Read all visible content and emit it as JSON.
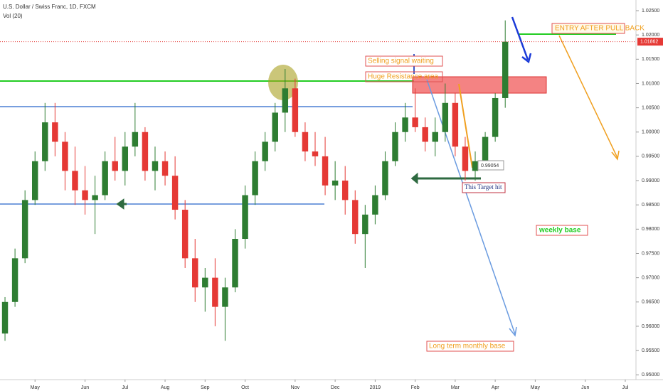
{
  "chart_data": {
    "type": "candlestick",
    "title": "U.S. Dollar / Swiss Franc, 1D, FXCM",
    "subtitle": "Vol (20)",
    "categories": [
      null,
      null,
      null,
      "May",
      null,
      null,
      null,
      null,
      "Jun",
      null,
      null,
      null,
      "Jul",
      null,
      null,
      null,
      "Aug",
      null,
      null,
      null,
      "Sep",
      null,
      null,
      null,
      "Oct",
      null,
      null,
      null,
      null,
      "Nov",
      null,
      null,
      null,
      "Dec",
      null,
      null,
      null,
      "2019",
      null,
      null,
      null,
      "Feb",
      null,
      null,
      null,
      "Mar",
      null,
      null,
      null,
      "Apr",
      null,
      null,
      null,
      "May",
      null,
      null,
      null,
      null,
      "Jun",
      null,
      null,
      null,
      "Jul"
    ],
    "open": [
      0.9585,
      0.965,
      0.974,
      0.986,
      0.994,
      1.002,
      0.998,
      0.992,
      0.988,
      0.986,
      0.987,
      0.994,
      0.992,
      0.997,
      1.0,
      0.992,
      0.994,
      0.991,
      0.984,
      0.974,
      0.968,
      0.97,
      0.964,
      0.968,
      0.978,
      0.987,
      0.994,
      0.998,
      1.004,
      1.009,
      1.0,
      0.996,
      0.995,
      0.989,
      0.99,
      0.986,
      0.979,
      0.983,
      0.987,
      0.994,
      1.0,
      1.003,
      1.001,
      0.998,
      1.0,
      1.006,
      0.997,
      0.992,
      0.994,
      0.999,
      1.007,
      null,
      null,
      null,
      null,
      null,
      null,
      null,
      null,
      null,
      null,
      null,
      null
    ],
    "high": [
      0.966,
      0.976,
      0.988,
      0.996,
      1.006,
      1.006,
      1.0,
      0.997,
      0.993,
      0.991,
      0.996,
      0.999,
      1.0,
      1.006,
      1.001,
      0.997,
      0.996,
      0.995,
      0.986,
      0.978,
      0.972,
      0.974,
      0.97,
      0.98,
      0.989,
      0.996,
      1.0,
      1.006,
      1.013,
      1.011,
      1.002,
      1.0,
      0.999,
      0.994,
      0.993,
      0.988,
      0.985,
      0.989,
      0.996,
      1.002,
      1.006,
      1.009,
      1.003,
      1.003,
      1.01,
      1.008,
      0.999,
      0.996,
      1.0,
      1.008,
      1.023,
      null,
      null,
      null,
      null,
      null,
      null,
      null,
      null,
      null,
      null,
      null,
      null
    ],
    "low": [
      0.957,
      0.964,
      0.973,
      0.985,
      0.992,
      0.995,
      0.988,
      0.985,
      0.983,
      0.979,
      0.986,
      0.99,
      0.989,
      0.995,
      0.99,
      0.988,
      0.989,
      0.982,
      0.972,
      0.965,
      0.963,
      0.96,
      0.957,
      0.967,
      0.976,
      0.985,
      0.992,
      0.996,
      1.0,
      0.999,
      0.994,
      0.993,
      0.987,
      0.986,
      0.983,
      0.977,
      0.972,
      0.981,
      0.986,
      0.993,
      0.998,
      1.0,
      0.996,
      0.995,
      0.998,
      0.995,
      0.99,
      0.99,
      0.993,
      0.998,
      1.005,
      null,
      null,
      null,
      null,
      null,
      null,
      null,
      null,
      null,
      null,
      null,
      null
    ],
    "close": [
      0.965,
      0.974,
      0.986,
      0.994,
      1.002,
      0.998,
      0.992,
      0.988,
      0.986,
      0.987,
      0.994,
      0.992,
      0.997,
      1.0,
      0.992,
      0.994,
      0.991,
      0.984,
      0.974,
      0.968,
      0.97,
      0.964,
      0.968,
      0.978,
      0.987,
      0.994,
      0.998,
      1.004,
      1.009,
      1.0,
      0.996,
      0.995,
      0.989,
      0.99,
      0.986,
      0.979,
      0.983,
      0.987,
      0.994,
      1.0,
      1.003,
      1.001,
      0.998,
      1.0,
      1.006,
      0.997,
      0.992,
      0.994,
      0.999,
      1.007,
      1.0186,
      null,
      null,
      null,
      null,
      null,
      null,
      null,
      null,
      null,
      null,
      null,
      null
    ],
    "up_color": "#2e7d32",
    "down_color": "#e53935",
    "last_price": {
      "value": 1.01862,
      "label": "1.01862"
    },
    "ylim": [
      0.9493,
      1.0272
    ],
    "yticks": [
      {
        "value": 0.95,
        "label": "0.95000"
      },
      {
        "value": 0.955,
        "label": "0.95500"
      },
      {
        "value": 0.96,
        "label": "0.96000"
      },
      {
        "value": 0.965,
        "label": "0.96500"
      },
      {
        "value": 0.97,
        "label": "0.97000"
      },
      {
        "value": 0.975,
        "label": "0.97500"
      },
      {
        "value": 0.98,
        "label": "0.98000"
      },
      {
        "value": 0.985,
        "label": "0.98500"
      },
      {
        "value": 0.99,
        "label": "0.99000"
      },
      {
        "value": 0.995,
        "label": "0.99500"
      },
      {
        "value": 1.0,
        "label": "1.00000"
      },
      {
        "value": 1.005,
        "label": "1.00500"
      },
      {
        "value": 1.01,
        "label": "1.01000"
      },
      {
        "value": 1.015,
        "label": "1.01500"
      },
      {
        "value": 1.02,
        "label": "1.02000"
      },
      {
        "value": 1.025,
        "label": "1.02500"
      }
    ],
    "annotations": [
      "ENTRY AFTER PULL BACK",
      "Selling signal waiting",
      "Huge Resistance area",
      "0.99054",
      "This Target hit",
      "weekly base",
      "Long term monthly base"
    ]
  }
}
